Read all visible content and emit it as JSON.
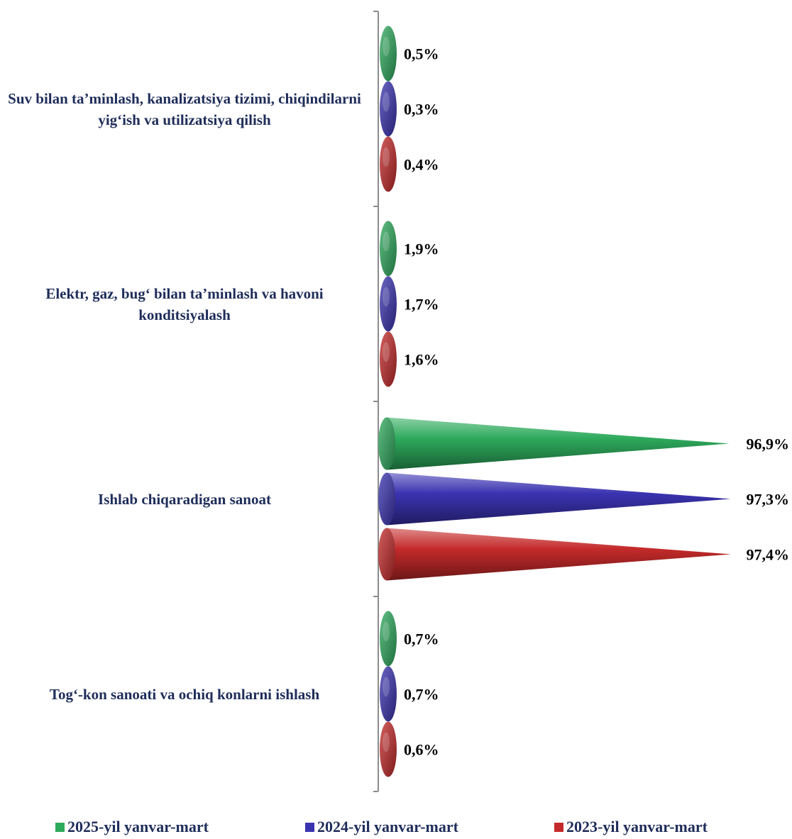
{
  "chart_data": {
    "type": "bar",
    "orientation": "horizontal",
    "shape": "cone",
    "categories": [
      "Suv bilan ta’minlash, kanalizatsiya tizimi, chiqindilarni yig‘ish va utilizatsiya qilish",
      "Elektr, gaz, bug‘ bilan ta’minlash va havoni konditsiyalash",
      "Ishlab chiqaradigan sanoat",
      "Tog‘-kon sanoati va ochiq konlarni ishlash"
    ],
    "series": [
      {
        "name": "2025-yil yanvar-mart",
        "color": "#2eaa5c",
        "values": [
          0.5,
          1.9,
          96.9,
          0.7
        ],
        "labels": [
          "0,5%",
          "1,9%",
          "96,9%",
          "0,7%"
        ]
      },
      {
        "name": "2024-yil yanvar-mart",
        "color": "#3a33b0",
        "values": [
          0.3,
          1.7,
          97.3,
          0.7
        ],
        "labels": [
          "0,3%",
          "1,7%",
          "97,3%",
          "0,7%"
        ]
      },
      {
        "name": "2023-yil yanvar-mart",
        "color": "#c42a2a",
        "values": [
          0.4,
          1.6,
          97.4,
          0.6
        ],
        "labels": [
          "0,4%",
          "1,6%",
          "97,4%",
          "0,6%"
        ]
      }
    ],
    "xlim": [
      0,
      100
    ],
    "legend_position": "bottom",
    "grid": false
  }
}
